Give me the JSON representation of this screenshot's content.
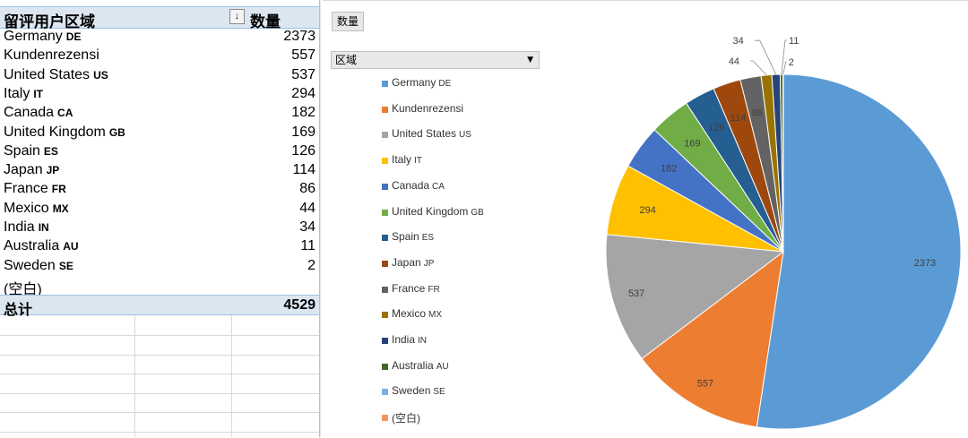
{
  "pivot": {
    "header_region": "留评用户区域",
    "header_count": "数量",
    "filter_icon": "↓",
    "rows": [
      {
        "name": "Germany",
        "code": "DE",
        "value": "2373"
      },
      {
        "name": "Kundenrezensi",
        "code": "",
        "value": "557"
      },
      {
        "name": "United States",
        "code": "US",
        "value": "537"
      },
      {
        "name": "Italy",
        "code": "IT",
        "value": "294"
      },
      {
        "name": "Canada",
        "code": "CA",
        "value": "182"
      },
      {
        "name": "United Kingdom",
        "code": "GB",
        "value": "169"
      },
      {
        "name": "Spain",
        "code": "ES",
        "value": "126"
      },
      {
        "name": "Japan",
        "code": "JP",
        "value": "114"
      },
      {
        "name": "France",
        "code": "FR",
        "value": "86"
      },
      {
        "name": "Mexico",
        "code": "MX",
        "value": "44"
      },
      {
        "name": "India",
        "code": "IN",
        "value": "34"
      },
      {
        "name": "Australia",
        "code": "AU",
        "value": "11"
      },
      {
        "name": "Sweden",
        "code": "SE",
        "value": "2"
      },
      {
        "name": "(空白)",
        "code": "",
        "value": ""
      }
    ],
    "total_label": "总计",
    "total_value": "4529"
  },
  "chart_ui": {
    "value_field": "数量",
    "axis_field": "区域",
    "dropdown_icon": "▼"
  },
  "chart_data": {
    "type": "pie",
    "categories": [
      "Germany DE",
      "Kundenrezensi",
      "United States US",
      "Italy IT",
      "Canada CA",
      "United Kingdom GB",
      "Spain ES",
      "Japan JP",
      "France FR",
      "Mexico MX",
      "India IN",
      "Australia AU",
      "Sweden SE",
      "(空白)"
    ],
    "legend_names": [
      "Germany",
      "Kundenrezensi",
      "United States",
      "Italy",
      "Canada",
      "United Kingdom",
      "Spain",
      "Japan",
      "France",
      "Mexico",
      "India",
      "Australia",
      "Sweden",
      "(空白)"
    ],
    "legend_codes": [
      "DE",
      "",
      "US",
      "IT",
      "CA",
      "GB",
      "ES",
      "JP",
      "FR",
      "MX",
      "IN",
      "AU",
      "SE",
      ""
    ],
    "values": [
      2373,
      557,
      537,
      294,
      182,
      169,
      126,
      114,
      86,
      44,
      34,
      11,
      2,
      0
    ],
    "colors": [
      "#5b9bd5",
      "#ed7d31",
      "#a5a5a5",
      "#ffc000",
      "#4472c4",
      "#70ad47",
      "#255e91",
      "#9e480e",
      "#636363",
      "#997300",
      "#264478",
      "#43682b",
      "#7cafdd",
      "#f1975a"
    ],
    "title": "",
    "legend_position": "left",
    "data_labels": true
  }
}
